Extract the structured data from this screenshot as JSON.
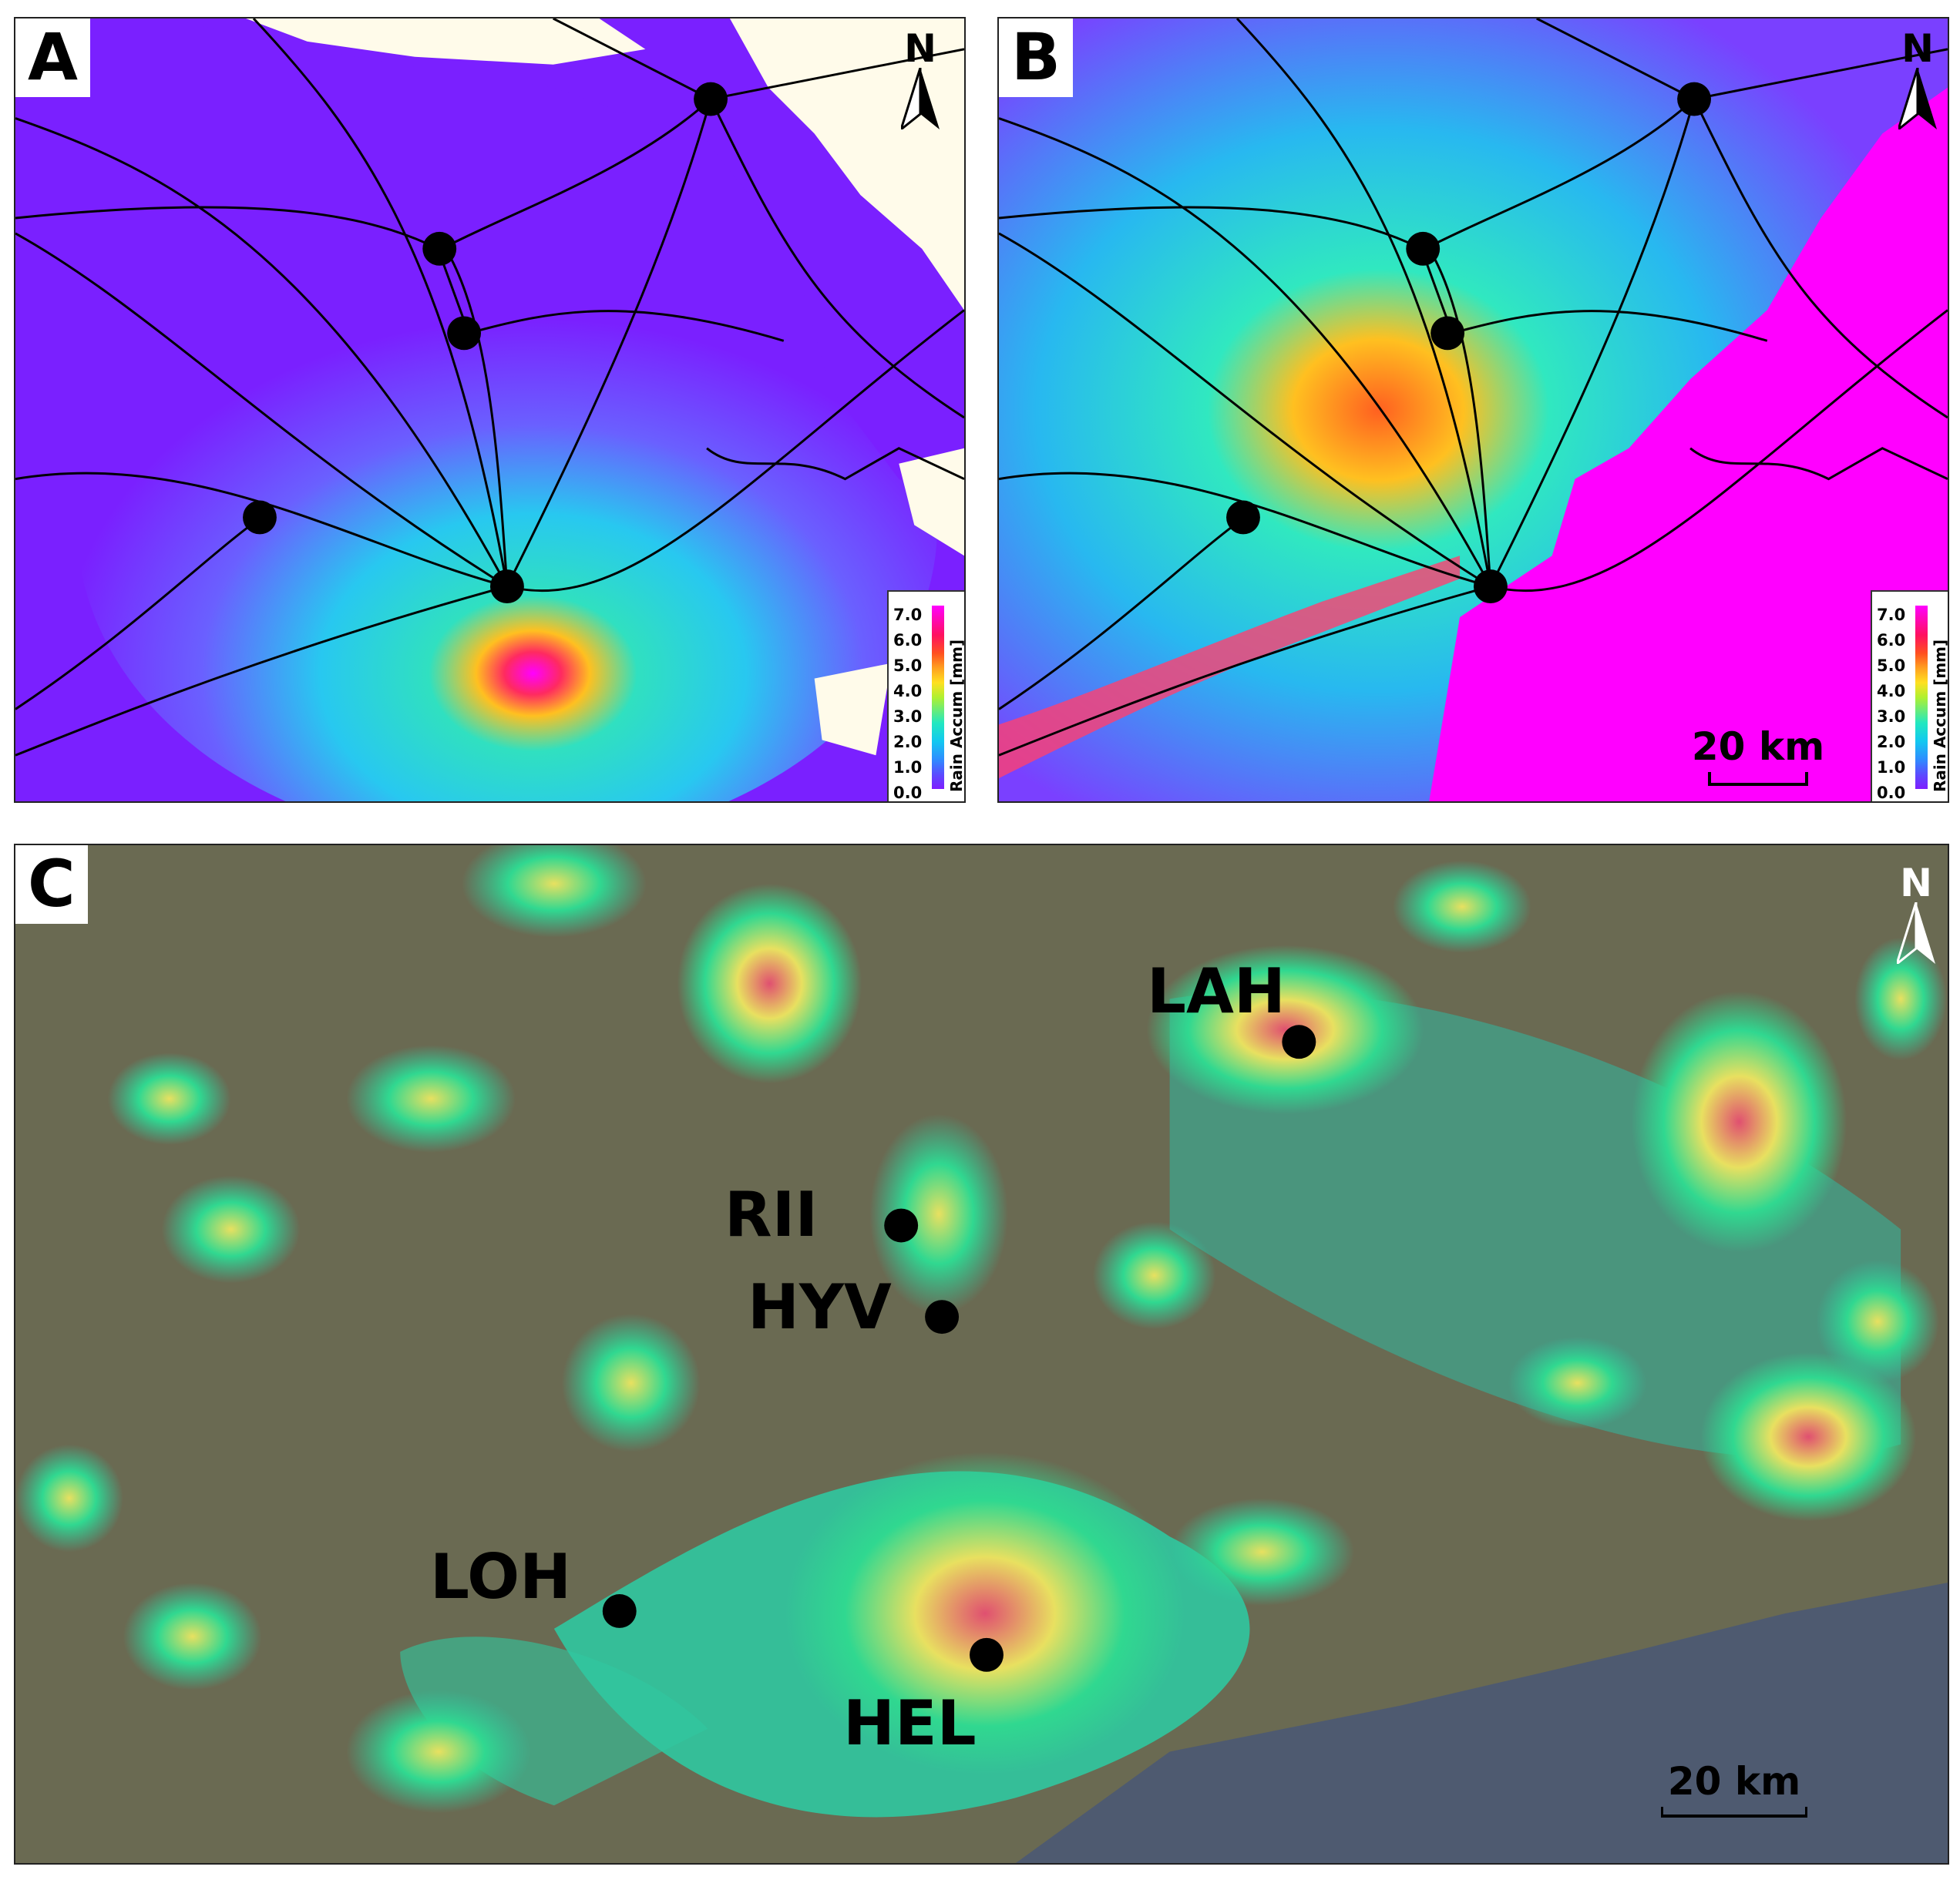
{
  "panels": {
    "a": {
      "letter": "A",
      "north": "N"
    },
    "b": {
      "letter": "B",
      "north": "N",
      "scale": "20 km"
    },
    "c": {
      "letter": "C",
      "north": "N",
      "scale": "20 km"
    }
  },
  "legend": {
    "title": "Rain Accum [mm]",
    "ticks": [
      "7.0",
      "6.0",
      "5.0",
      "4.0",
      "3.0",
      "2.0",
      "1.0",
      "0.0"
    ]
  },
  "stations": {
    "lah": "LAH",
    "rii": "RII",
    "hyv": "HYV",
    "loh": "LOH",
    "hel": "HEL"
  },
  "colors": {
    "low": "#7f1cff",
    "mid": "#1ad8d0",
    "high": "#ff00ff",
    "no_data": "#fffbea",
    "light_low": "#6a6a52",
    "light_sea": "#4e5a70"
  }
}
